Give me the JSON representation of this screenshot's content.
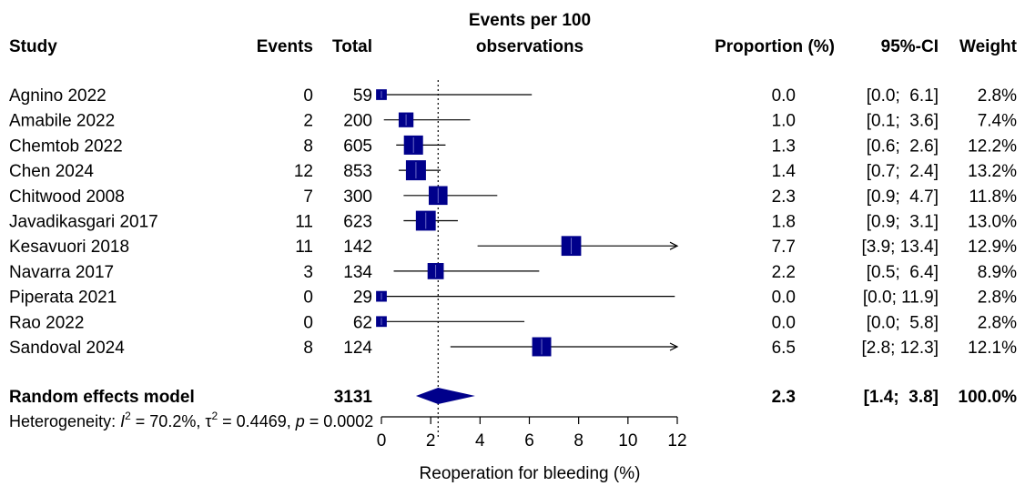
{
  "headers": {
    "study": "Study",
    "events": "Events",
    "total": "Total",
    "plot_line1": "Events per 100",
    "plot_line2": "observations",
    "proportion": "Proportion (%)",
    "ci": "95%-CI",
    "weight": "Weight"
  },
  "pooled": {
    "label": "Random effects model",
    "total": "3131",
    "estimate": 2.3,
    "lower": 1.4,
    "upper": 3.8,
    "prop_text": "2.3",
    "ci_text": "[1.4;  3.8]",
    "weight_text": "100.0%"
  },
  "heterogeneity": {
    "prefix": "Heterogeneity: ",
    "I": "I",
    "sup": "2",
    "i2": " = 70.2%, ",
    "tau": "τ",
    "tau2": " = 0.4469, ",
    "p": "p",
    "pval": " = 0.0002"
  },
  "chart_data": {
    "type": "forest",
    "xlabel": "Reoperation for bleeding (%)",
    "xlim": [
      0,
      12
    ],
    "xticks": [
      0,
      2,
      4,
      6,
      8,
      10,
      12
    ],
    "reference_line": 2.3,
    "colors": {
      "box": "#00008B",
      "diamond": "#00008B",
      "line": "#000000"
    },
    "studies": [
      {
        "study": "Agnino 2022",
        "events": "0",
        "total": "59",
        "est": 0.0,
        "lo": 0.0,
        "hi": 6.1,
        "prop": "0.0",
        "ci": "[0.0;  6.1]",
        "weight_text": "2.8%",
        "weight": 2.8
      },
      {
        "study": "Amabile 2022",
        "events": "2",
        "total": "200",
        "est": 1.0,
        "lo": 0.1,
        "hi": 3.6,
        "prop": "1.0",
        "ci": "[0.1;  3.6]",
        "weight_text": "7.4%",
        "weight": 7.4
      },
      {
        "study": "Chemtob 2022",
        "events": "8",
        "total": "605",
        "est": 1.3,
        "lo": 0.6,
        "hi": 2.6,
        "prop": "1.3",
        "ci": "[0.6;  2.6]",
        "weight_text": "12.2%",
        "weight": 12.2
      },
      {
        "study": "Chen 2024",
        "events": "12",
        "total": "853",
        "est": 1.4,
        "lo": 0.7,
        "hi": 2.4,
        "prop": "1.4",
        "ci": "[0.7;  2.4]",
        "weight_text": "13.2%",
        "weight": 13.2
      },
      {
        "study": "Chitwood 2008",
        "events": "7",
        "total": "300",
        "est": 2.3,
        "lo": 0.9,
        "hi": 4.7,
        "prop": "2.3",
        "ci": "[0.9;  4.7]",
        "weight_text": "11.8%",
        "weight": 11.8
      },
      {
        "study": "Javadikasgari 2017",
        "events": "11",
        "total": "623",
        "est": 1.8,
        "lo": 0.9,
        "hi": 3.1,
        "prop": "1.8",
        "ci": "[0.9;  3.1]",
        "weight_text": "13.0%",
        "weight": 13.0
      },
      {
        "study": "Kesavuori 2018",
        "events": "11",
        "total": "142",
        "est": 7.7,
        "lo": 3.9,
        "hi": 13.4,
        "prop": "7.7",
        "ci": "[3.9; 13.4]",
        "weight_text": "12.9%",
        "weight": 12.9
      },
      {
        "study": "Navarra 2017",
        "events": "3",
        "total": "134",
        "est": 2.2,
        "lo": 0.5,
        "hi": 6.4,
        "prop": "2.2",
        "ci": "[0.5;  6.4]",
        "weight_text": "8.9%",
        "weight": 8.9
      },
      {
        "study": "Piperata 2021",
        "events": "0",
        "total": "29",
        "est": 0.0,
        "lo": 0.0,
        "hi": 11.9,
        "prop": "0.0",
        "ci": "[0.0; 11.9]",
        "weight_text": "2.8%",
        "weight": 2.8
      },
      {
        "study": "Rao 2022",
        "events": "0",
        "total": "62",
        "est": 0.0,
        "lo": 0.0,
        "hi": 5.8,
        "prop": "0.0",
        "ci": "[0.0;  5.8]",
        "weight_text": "2.8%",
        "weight": 2.8
      },
      {
        "study": "Sandoval 2024",
        "events": "8",
        "total": "124",
        "est": 6.5,
        "lo": 2.8,
        "hi": 12.3,
        "prop": "6.5",
        "ci": "[2.8; 12.3]",
        "weight_text": "12.1%",
        "weight": 12.1
      }
    ]
  }
}
